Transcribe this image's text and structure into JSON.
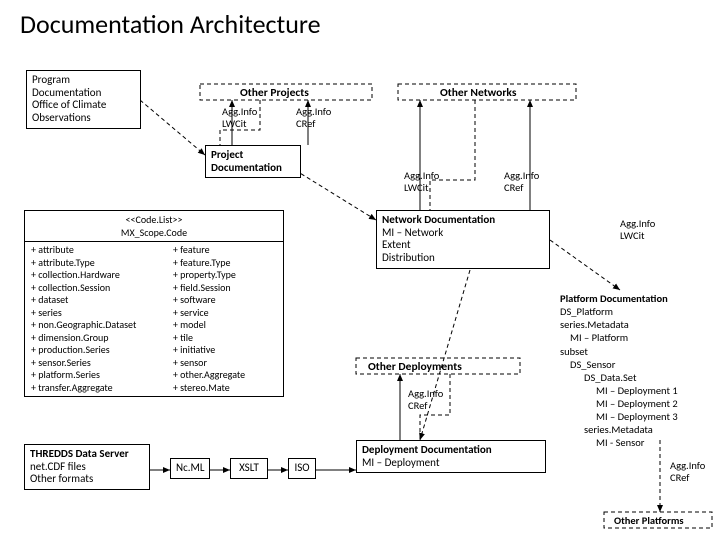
{
  "title": "Documentation Architecture",
  "boxes": {
    "program": "Program\nDocumentation\nOffice of Climate\nObservations",
    "project_doc": "Project\nDocumentation",
    "network_doc": "Network Documentation\nMI – Network\n  Extent\n  Distribution",
    "deploy_doc": "Deployment Documentation\nMI – Deployment",
    "thredds": "THREDDS Data Server\nnet.CDF files\nOther formats"
  },
  "headers": {
    "other_projects": "Other Projects",
    "other_networks": "Other Networks",
    "other_deployments": "Other Deployments",
    "other_platforms": "Other Platforms"
  },
  "agg": {
    "lwcit": "Agg.Info\nLWCit",
    "cref": "Agg.Info\nCRef"
  },
  "codelist": {
    "stereo": "<<Code.List>>",
    "name": "MX_Scope.Code",
    "left": [
      "+ attribute",
      "+ attribute.Type",
      "+ collection.Hardware",
      "+ collection.Session",
      "+ dataset",
      "+ series",
      "+ non.Geographic.Dataset",
      "+ dimension.Group",
      "+ production.Series",
      "+ sensor.Series",
      "+ platform.Series",
      "+ transfer.Aggregate"
    ],
    "right": [
      "+ feature",
      "+ feature.Type",
      "+ property.Type",
      "+ field.Session",
      "+ software",
      "+ service",
      "+ model",
      "+ tile",
      "+ initiative",
      "+ sensor",
      "+ other.Aggregate",
      "+ stereo.Mate"
    ]
  },
  "formats": {
    "ncml": "Nc.ML",
    "xslt": "XSLT",
    "iso": "ISO"
  },
  "platform": {
    "l1": "Platform Documentation",
    "l2": "DS_Platform",
    "l3": "series.Metadata",
    "l4": "MI – Platform",
    "l5": "subset",
    "l6": "DS_Sensor",
    "l7": "DS_Data.Set",
    "l8": "MI – Deployment 1",
    "l9": "MI – Deployment 2",
    "l10": "MI – Deployment 3",
    "l11": "series.Metadata",
    "l12": "MI - Sensor"
  }
}
